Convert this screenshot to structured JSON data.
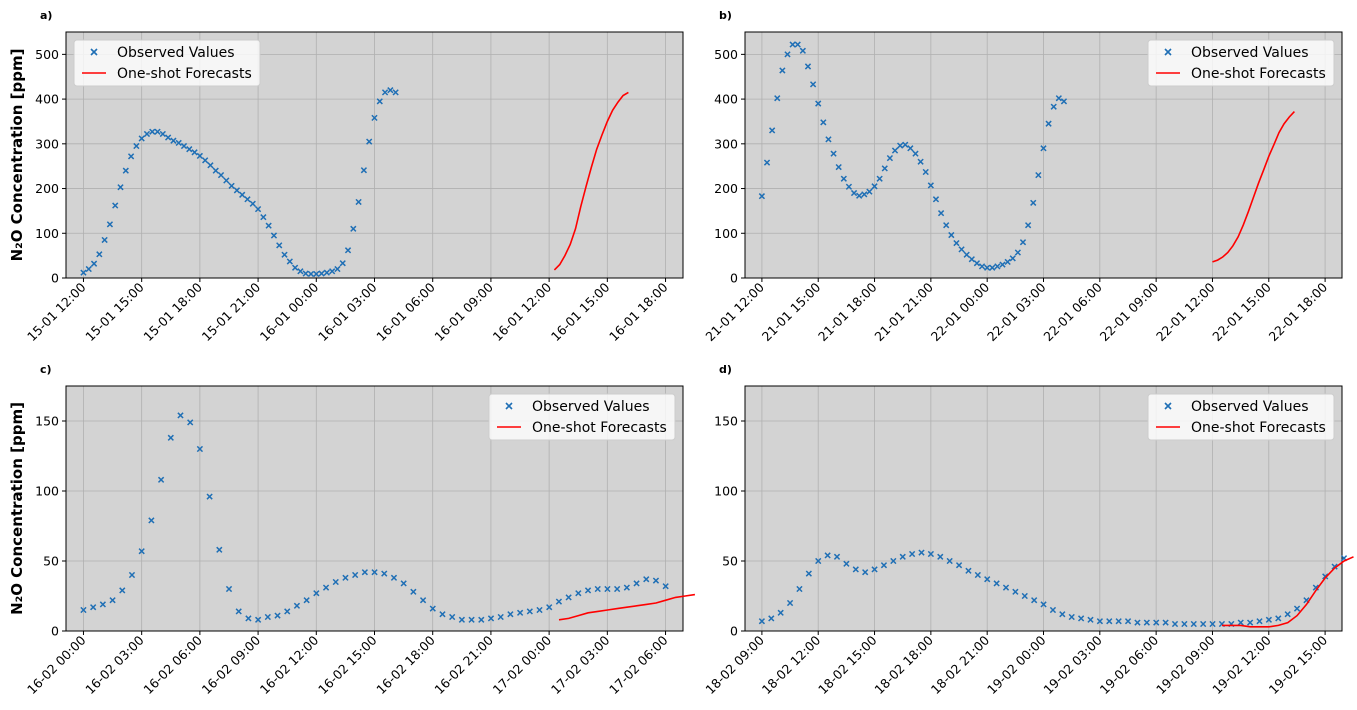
{
  "chart_data": [
    {
      "type": "scatter",
      "panel_label": "a)",
      "ylabel": "N₂O Concentration [ppm]",
      "ylim": [
        0,
        550
      ],
      "yticks": [
        0,
        100,
        200,
        300,
        400,
        500
      ],
      "xticks": [
        "15-01 12:00",
        "15-01 15:00",
        "15-01 18:00",
        "15-01 21:00",
        "16-01 00:00",
        "16-01 03:00",
        "16-01 06:00",
        "16-01 09:00",
        "16-01 12:00",
        "16-01 15:00",
        "16-01 18:00"
      ],
      "x_range_ticks": [
        -0.3,
        10.3
      ],
      "grid": true,
      "legend_position": "upper-left",
      "series": [
        {
          "name": "Observed Values",
          "kind": "scatter",
          "color": "#1f6fb5",
          "x_start": 0,
          "x_step": 0.0909,
          "y": [
            12,
            20,
            32,
            53,
            85,
            120,
            162,
            203,
            240,
            272,
            295,
            312,
            322,
            327,
            327,
            322,
            314,
            307,
            302,
            295,
            288,
            281,
            273,
            263,
            252,
            240,
            230,
            218,
            206,
            196,
            186,
            176,
            166,
            154,
            136,
            117,
            95,
            73,
            52,
            37,
            23,
            15,
            10,
            9,
            9,
            10,
            12,
            15,
            20,
            33,
            62,
            110,
            170,
            241,
            305,
            358,
            395,
            415,
            420,
            415
          ]
        },
        {
          "name": "One-shot Forecasts",
          "kind": "line",
          "color": "#ff0000",
          "x_start": 8.09,
          "x_step": 0.0909,
          "y": [
            18,
            30,
            50,
            75,
            110,
            160,
            205,
            248,
            288,
            320,
            350,
            375,
            393,
            408,
            415
          ]
        }
      ]
    },
    {
      "type": "scatter",
      "panel_label": "b)",
      "ylabel": "",
      "ylim": [
        0,
        550
      ],
      "yticks": [
        0,
        100,
        200,
        300,
        400,
        500
      ],
      "xticks": [
        "21-01 12:00",
        "21-01 15:00",
        "21-01 18:00",
        "21-01 21:00",
        "22-01 00:00",
        "22-01 03:00",
        "22-01 06:00",
        "22-01 09:00",
        "22-01 12:00",
        "22-01 15:00",
        "22-01 18:00"
      ],
      "x_range_ticks": [
        -0.3,
        10.3
      ],
      "grid": true,
      "legend_position": "upper-right",
      "series": [
        {
          "name": "Observed Values",
          "kind": "scatter",
          "color": "#1f6fb5",
          "x_start": 0,
          "x_step": 0.0909,
          "y": [
            183,
            258,
            330,
            402,
            464,
            500,
            522,
            522,
            508,
            473,
            433,
            390,
            348,
            310,
            278,
            248,
            222,
            204,
            190,
            184,
            187,
            193,
            205,
            222,
            245,
            268,
            285,
            296,
            298,
            290,
            278,
            260,
            237,
            207,
            176,
            145,
            118,
            96,
            78,
            64,
            52,
            42,
            33,
            26,
            23,
            23,
            26,
            30,
            36,
            44,
            57,
            80,
            118,
            168,
            230,
            290,
            345,
            383,
            402,
            395
          ]
        },
        {
          "name": "One-shot Forecasts",
          "kind": "line",
          "color": "#ff0000",
          "x_start": 8.0,
          "x_step": 0.0909,
          "y": [
            36,
            40,
            47,
            57,
            72,
            92,
            118,
            148,
            180,
            212,
            242,
            272,
            298,
            325,
            345,
            360,
            372
          ]
        }
      ]
    },
    {
      "type": "scatter",
      "panel_label": "c)",
      "ylabel": "N₂O Concentration [ppm]",
      "ylim": [
        0,
        175
      ],
      "yticks": [
        0,
        50,
        100,
        150
      ],
      "xticks": [
        "16-02 00:00",
        "16-02 03:00",
        "16-02 06:00",
        "16-02 09:00",
        "16-02 12:00",
        "16-02 15:00",
        "16-02 18:00",
        "16-02 21:00",
        "17-02 00:00",
        "17-02 03:00",
        "17-02 06:00"
      ],
      "x_range_ticks": [
        -0.3,
        10.3
      ],
      "grid": true,
      "legend_position": "upper-right",
      "series": [
        {
          "name": "Observed Values",
          "kind": "scatter",
          "color": "#1f6fb5",
          "x_start": 0,
          "x_step": 0.1667,
          "y": [
            15,
            17,
            19,
            22,
            29,
            40,
            57,
            79,
            108,
            138,
            154,
            149,
            130,
            96,
            58,
            30,
            14,
            9,
            8,
            10,
            11,
            14,
            18,
            22,
            27,
            31,
            35,
            38,
            40,
            42,
            42,
            41,
            38,
            34,
            28,
            22,
            16,
            12,
            10,
            8,
            8,
            8,
            9,
            10,
            12,
            13,
            14,
            15,
            17,
            21,
            24,
            27,
            29,
            30,
            30,
            30,
            31,
            34,
            37,
            36,
            32
          ]
        },
        {
          "name": "One-shot Forecasts",
          "kind": "line",
          "color": "#ff0000",
          "x_start": 8.17,
          "x_step": 0.1667,
          "y": [
            8,
            9,
            11,
            13,
            14,
            15,
            16,
            17,
            18,
            19,
            20,
            22,
            24,
            25,
            26
          ]
        }
      ]
    },
    {
      "type": "scatter",
      "panel_label": "d)",
      "ylabel": "",
      "ylim": [
        0,
        175
      ],
      "yticks": [
        0,
        50,
        100,
        150
      ],
      "xticks": [
        "18-02 09:00",
        "18-02 12:00",
        "18-02 15:00",
        "18-02 18:00",
        "18-02 21:00",
        "19-02 00:00",
        "19-02 03:00",
        "19-02 06:00",
        "19-02 09:00",
        "19-02 12:00",
        "19-02 15:00"
      ],
      "x_range_ticks": [
        -0.3,
        10.3
      ],
      "grid": true,
      "legend_position": "upper-right",
      "series": [
        {
          "name": "Observed Values",
          "kind": "scatter",
          "color": "#1f6fb5",
          "x_start": 0,
          "x_step": 0.1667,
          "y": [
            7,
            9,
            13,
            20,
            30,
            41,
            50,
            54,
            53,
            48,
            44,
            42,
            44,
            47,
            50,
            53,
            55,
            56,
            55,
            53,
            50,
            47,
            43,
            40,
            37,
            34,
            31,
            28,
            25,
            22,
            19,
            15,
            12,
            10,
            9,
            8,
            7,
            7,
            7,
            7,
            6,
            6,
            6,
            6,
            5,
            5,
            5,
            5,
            5,
            5,
            5,
            6,
            6,
            7,
            8,
            9,
            12,
            16,
            22,
            31,
            39,
            46,
            52
          ]
        },
        {
          "name": "One-shot Forecasts",
          "kind": "line",
          "color": "#ff0000",
          "x_start": 8.17,
          "x_step": 0.1667,
          "y": [
            4,
            4,
            4,
            3,
            3,
            3,
            4,
            6,
            11,
            19,
            29,
            38,
            45,
            50,
            53
          ]
        }
      ]
    }
  ]
}
